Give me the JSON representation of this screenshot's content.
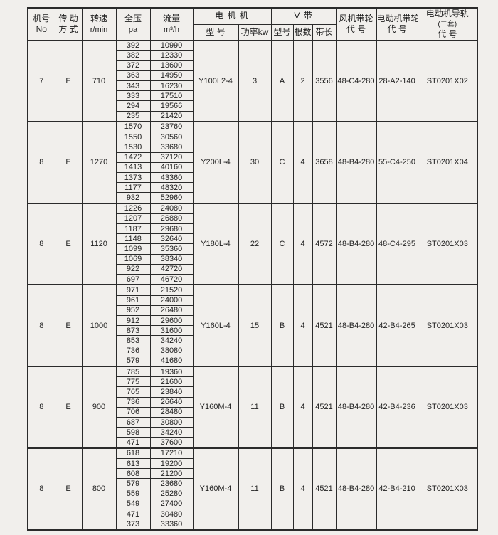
{
  "page": {
    "background": "#f1efec",
    "border_color": "#2b2b2b",
    "text_color": "#1f1f1f"
  },
  "header": {
    "machine_no": {
      "line1": "机号",
      "line2_n": "N",
      "line2_o": "o"
    },
    "drive_mode": {
      "line1": "传 动",
      "line2": "方 式"
    },
    "speed": {
      "line1": "转速",
      "line2": "r/min"
    },
    "pressure": {
      "line1": "全压",
      "line2": "pa"
    },
    "flow": {
      "line1": "流量",
      "line2": "m³/h"
    },
    "motor_group": "电  机  机",
    "motor_model": "型 号",
    "motor_power": "功率kw",
    "vbelt_group": "V        带",
    "belt_type": "型号",
    "belt_count": "根数",
    "belt_length": "带长",
    "fan_pulley": {
      "line1": "风机带轮",
      "line2": "代 号"
    },
    "motor_pulley": {
      "line1": "电动机带轮",
      "line2": "代 号"
    },
    "motor_rail": {
      "line1": "电动机导轨",
      "line2": "(二套)",
      "line3": "代 号"
    }
  },
  "blocks": [
    {
      "machine_no": "7",
      "drive_mode": "E",
      "speed_rpm": "710",
      "performance_rows": [
        [
          "392",
          "10990"
        ],
        [
          "382",
          "12330"
        ],
        [
          "372",
          "13600"
        ],
        [
          "363",
          "14950"
        ],
        [
          "343",
          "16230"
        ],
        [
          "333",
          "17510"
        ],
        [
          "294",
          "19566"
        ],
        [
          "235",
          "21420"
        ]
      ],
      "motor_model": "Y100L2-4",
      "motor_power_kw": "3",
      "belt_type": "A",
      "belt_count": "2",
      "belt_length": "3556",
      "fan_pulley_code": "48-C4-280",
      "motor_pulley_code": "28-A2-140",
      "motor_rail_code": "ST0201X02"
    },
    {
      "machine_no": "8",
      "drive_mode": "E",
      "speed_rpm": "1270",
      "performance_rows": [
        [
          "1570",
          "23760"
        ],
        [
          "1550",
          "30560"
        ],
        [
          "1530",
          "33680"
        ],
        [
          "1472",
          "37120"
        ],
        [
          "1413",
          "40160"
        ],
        [
          "1373",
          "43360"
        ],
        [
          "1177",
          "48320"
        ],
        [
          "932",
          "52960"
        ]
      ],
      "motor_model": "Y200L-4",
      "motor_power_kw": "30",
      "belt_type": "C",
      "belt_count": "4",
      "belt_length": "3658",
      "fan_pulley_code": "48-B4-280",
      "motor_pulley_code": "55-C4-250",
      "motor_rail_code": "ST0201X04"
    },
    {
      "machine_no": "8",
      "drive_mode": "E",
      "speed_rpm": "1120",
      "performance_rows": [
        [
          "1226",
          "24080"
        ],
        [
          "1207",
          "26880"
        ],
        [
          "1187",
          "29680"
        ],
        [
          "1148",
          "32640"
        ],
        [
          "1099",
          "35360"
        ],
        [
          "1069",
          "38340"
        ],
        [
          "922",
          "42720"
        ],
        [
          "697",
          "46720"
        ]
      ],
      "motor_model": "Y180L-4",
      "motor_power_kw": "22",
      "belt_type": "C",
      "belt_count": "4",
      "belt_length": "4572",
      "fan_pulley_code": "48-B4-280",
      "motor_pulley_code": "48-C4-295",
      "motor_rail_code": "ST0201X03"
    },
    {
      "machine_no": "8",
      "drive_mode": "E",
      "speed_rpm": "1000",
      "performance_rows": [
        [
          "971",
          "21520"
        ],
        [
          "961",
          "24000"
        ],
        [
          "952",
          "26480"
        ],
        [
          "912",
          "29600"
        ],
        [
          "873",
          "31600"
        ],
        [
          "853",
          "34240"
        ],
        [
          "736",
          "38080"
        ],
        [
          "579",
          "41680"
        ]
      ],
      "motor_model": "Y160L-4",
      "motor_power_kw": "15",
      "belt_type": "B",
      "belt_count": "4",
      "belt_length": "4521",
      "fan_pulley_code": "48-B4-280",
      "motor_pulley_code": "42-B4-265",
      "motor_rail_code": "ST0201X03"
    },
    {
      "machine_no": "8",
      "drive_mode": "E",
      "speed_rpm": "900",
      "performance_rows": [
        [
          "785",
          "19360"
        ],
        [
          "775",
          "21600"
        ],
        [
          "765",
          "23840"
        ],
        [
          "736",
          "26640"
        ],
        [
          "706",
          "28480"
        ],
        [
          "687",
          "30800"
        ],
        [
          "598",
          "34240"
        ],
        [
          "471",
          "37600"
        ]
      ],
      "motor_model": "Y160M-4",
      "motor_power_kw": "11",
      "belt_type": "B",
      "belt_count": "4",
      "belt_length": "4521",
      "fan_pulley_code": "48-B4-280",
      "motor_pulley_code": "42-B4-236",
      "motor_rail_code": "ST0201X03"
    },
    {
      "machine_no": "8",
      "drive_mode": "E",
      "speed_rpm": "800",
      "performance_rows": [
        [
          "618",
          "17210"
        ],
        [
          "613",
          "19200"
        ],
        [
          "608",
          "21200"
        ],
        [
          "579",
          "23680"
        ],
        [
          "559",
          "25280"
        ],
        [
          "549",
          "27400"
        ],
        [
          "471",
          "30480"
        ],
        [
          "373",
          "33360"
        ]
      ],
      "motor_model": "Y160M-4",
      "motor_power_kw": "11",
      "belt_type": "B",
      "belt_count": "4",
      "belt_length": "4521",
      "fan_pulley_code": "48-B4-280",
      "motor_pulley_code": "42-B4-210",
      "motor_rail_code": "ST0201X03"
    }
  ]
}
